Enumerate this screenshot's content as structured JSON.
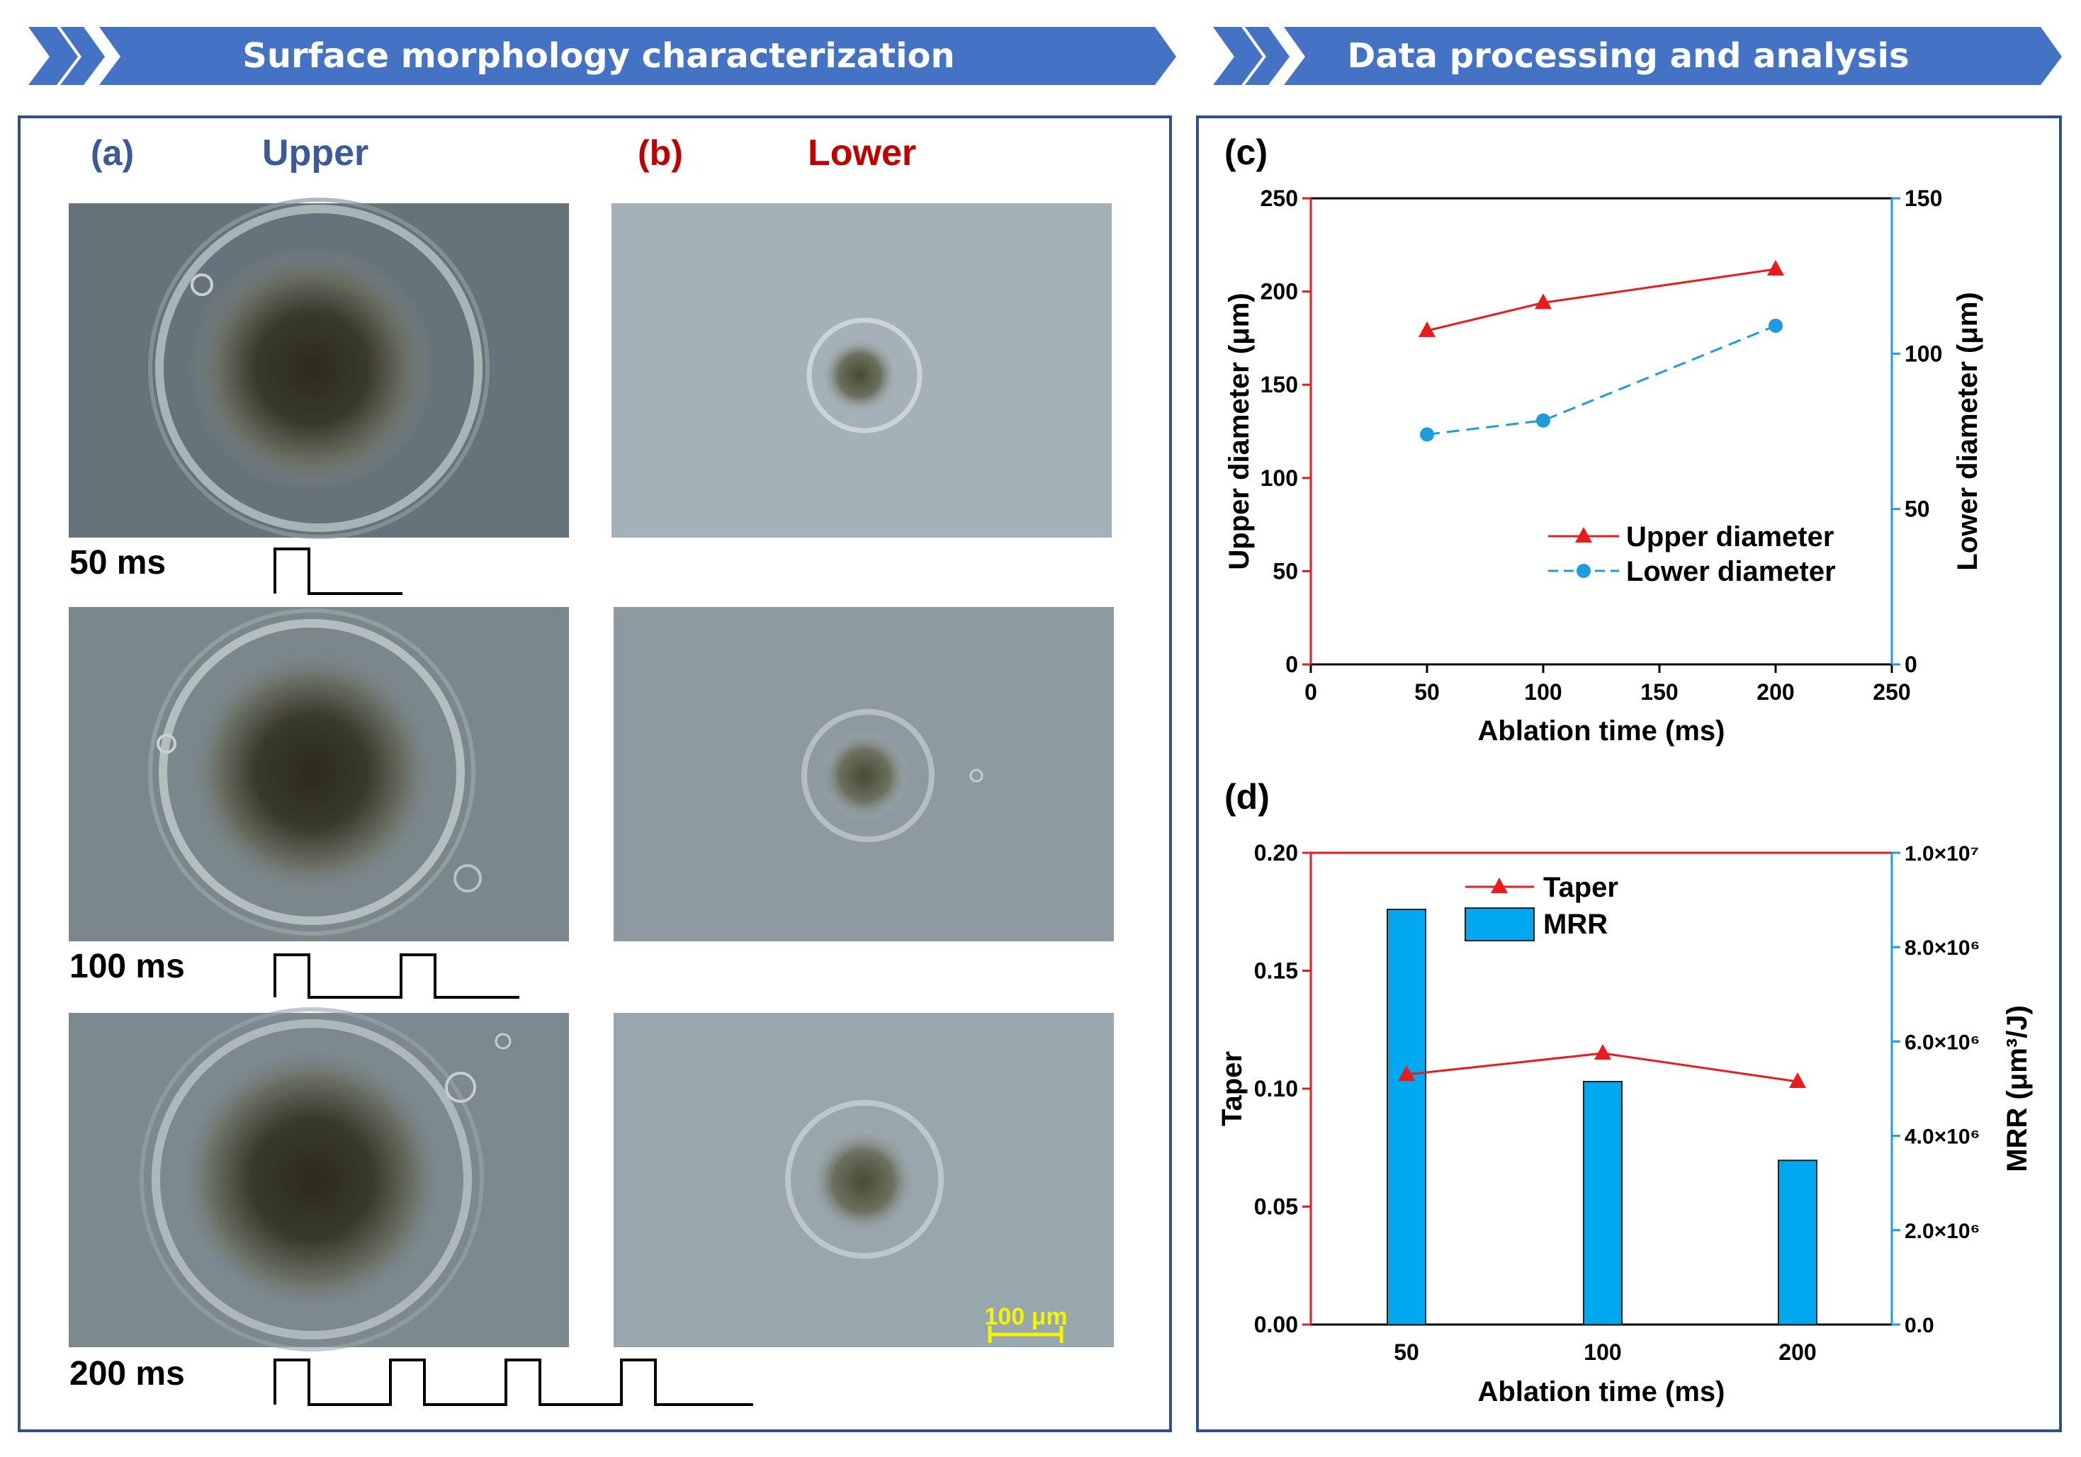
{
  "banners": {
    "left": "Surface morphology characterization",
    "right": "Data processing and analysis"
  },
  "panels": {
    "a": {
      "label": "(a)",
      "title": "Upper"
    },
    "b": {
      "label": "(b)",
      "title": "Lower"
    },
    "c": {
      "label": "(c)"
    },
    "d": {
      "label": "(d)"
    }
  },
  "rows": [
    {
      "time_label": "50 ms",
      "pulses": 1
    },
    {
      "time_label": "100 ms",
      "pulses": 2
    },
    {
      "time_label": "200 ms",
      "pulses": 4
    }
  ],
  "scale_bar": "100 μm",
  "colors": {
    "banner": "#4472c4",
    "frame": "#2f4f8f",
    "upper_title": "#3a5a9a",
    "lower_title": "#c00000",
    "series_red": "#e81c1c",
    "series_blue": "#1f9bdf",
    "bar_fill": "#00a8f0",
    "scale_yellow": "#f5f500"
  },
  "chart_data": [
    {
      "id": "c",
      "type": "line",
      "xlabel": "Ablation time (ms)",
      "ylabel": "Upper diameter (μm)",
      "y2label": "Lower diameter (μm)",
      "xlim": [
        0,
        250
      ],
      "xticks": [
        "0",
        "50",
        "100",
        "150",
        "200",
        "250"
      ],
      "ylim": [
        0,
        250
      ],
      "yticks": [
        "0",
        "50",
        "100",
        "150",
        "200",
        "250"
      ],
      "y2lim": [
        0,
        150
      ],
      "y2ticks": [
        "0",
        "50",
        "100",
        "150"
      ],
      "legend_position": "lower-right",
      "series": [
        {
          "name": "Upper diameter",
          "axis": "left",
          "marker": "triangle",
          "style": "solid",
          "x": [
            50,
            100,
            200
          ],
          "y": [
            179,
            194,
            212
          ]
        },
        {
          "name": "Lower diameter",
          "axis": "right",
          "marker": "circle",
          "style": "dashed",
          "x": [
            50,
            100,
            200
          ],
          "y": [
            74,
            78.5,
            109
          ]
        }
      ]
    },
    {
      "id": "d",
      "type": "bar",
      "xlabel": "Ablation time (ms)",
      "ylabel": "Taper",
      "y2label": "MRR (μm³/J)",
      "categories": [
        "50",
        "100",
        "200"
      ],
      "ylim": [
        0,
        0.2
      ],
      "yticks": [
        "0.00",
        "0.05",
        "0.10",
        "0.15",
        "0.20"
      ],
      "y2lim": [
        0,
        10000000
      ],
      "y2ticks": [
        "0.0",
        "2.0×10⁶",
        "4.0×10⁶",
        "6.0×10⁶",
        "8.0×10⁶",
        "1.0×10⁷"
      ],
      "legend_position": "top-left",
      "series": [
        {
          "name": "Taper",
          "axis": "left",
          "kind": "line",
          "marker": "triangle",
          "values": [
            0.106,
            0.115,
            0.103
          ]
        },
        {
          "name": "MRR",
          "axis": "right",
          "kind": "bar",
          "values": [
            8800000,
            5150000,
            3480000
          ]
        }
      ]
    }
  ]
}
